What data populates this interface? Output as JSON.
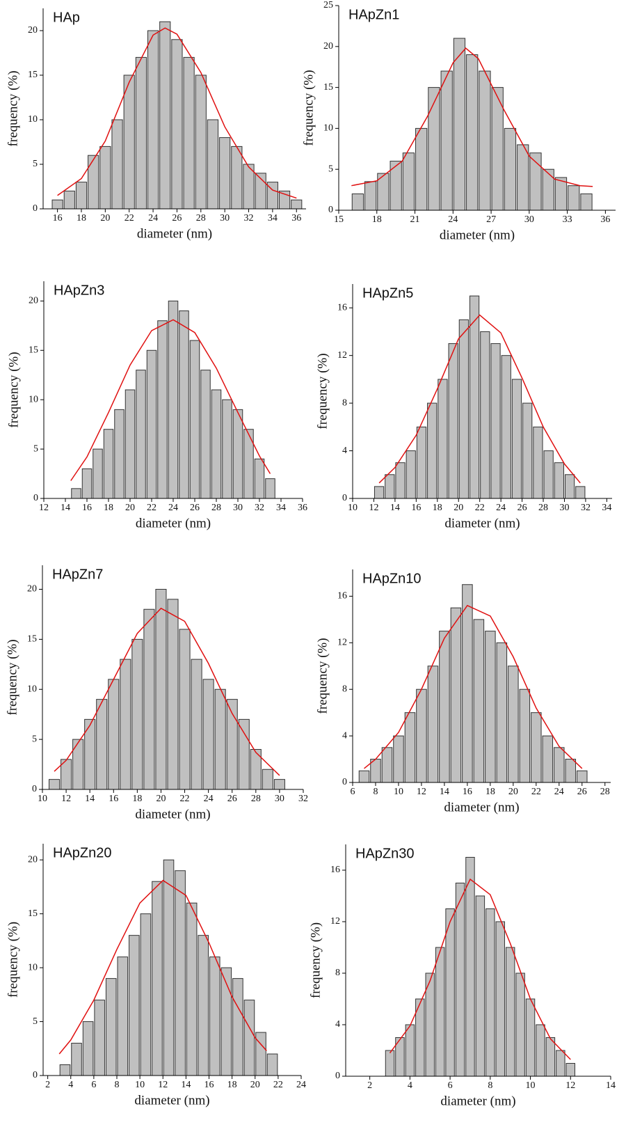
{
  "chart_data": [
    {
      "type": "histogram",
      "title": "HAp",
      "xlabel": "diameter (nm)",
      "ylabel": "frequency (%)",
      "color": "#c0c0c0",
      "bins": [
        15.5,
        16.5,
        17.5,
        18.5,
        19.5,
        20.5,
        21.5,
        22.5,
        23.5,
        24.5,
        25.5,
        26.5,
        27.5,
        28.5,
        29.5,
        30.5,
        31.5,
        32.5,
        33.5,
        34.5,
        35.5,
        36.5
      ],
      "values": [
        1,
        2,
        3,
        6,
        7,
        10,
        15,
        17,
        20,
        21,
        19,
        17,
        15,
        10,
        8,
        7,
        5,
        4,
        3,
        2,
        1
      ],
      "fit": {
        "color": "#e01010",
        "x": [
          16,
          18,
          20,
          22,
          24,
          25,
          26,
          28,
          30,
          32,
          34,
          36
        ],
        "values": [
          1.5,
          3.4,
          7.6,
          14.2,
          19.5,
          20.3,
          19.6,
          15.3,
          9.2,
          4.7,
          2.1,
          1.2
        ]
      },
      "xlim": [
        14.8,
        36.8
      ],
      "xticks": [
        16,
        18,
        20,
        22,
        24,
        26,
        28,
        30,
        32,
        34,
        36
      ],
      "ylim": [
        0,
        22.5
      ],
      "yticks": [
        0,
        5,
        10,
        15,
        20
      ]
    },
    {
      "type": "histogram",
      "title": "HApZn1",
      "xlabel": "diameter (nm)",
      "ylabel": "frequency (%)",
      "color": "#c0c0c0",
      "bins": [
        16,
        17,
        18,
        19,
        20,
        21,
        22,
        23,
        24,
        25,
        26,
        27,
        28,
        29,
        30,
        31,
        32,
        33,
        34,
        35
      ],
      "values": [
        2,
        3.5,
        4.5,
        6,
        7,
        10,
        15,
        17,
        21,
        19,
        17,
        15,
        10,
        8,
        7,
        5,
        4,
        3,
        2
      ],
      "fit": {
        "color": "#e01010",
        "x": [
          16,
          18,
          20,
          22,
          24,
          25,
          26,
          28,
          30,
          32,
          34,
          35
        ],
        "values": [
          3.0,
          3.6,
          6.0,
          11.5,
          18.0,
          19.8,
          18.5,
          12.3,
          6.6,
          3.8,
          3.0,
          2.9
        ]
      },
      "xlim": [
        15,
        36.8
      ],
      "xticks": [
        15,
        18,
        21,
        24,
        27,
        30,
        33,
        36
      ],
      "ylim": [
        0,
        25
      ],
      "yticks": [
        0,
        5,
        10,
        15,
        20,
        25
      ]
    },
    {
      "type": "histogram",
      "title": "HApZn3",
      "xlabel": "diameter (nm)",
      "ylabel": "frequency (%)",
      "color": "#c0c0c0",
      "bins": [
        14.5,
        15.5,
        16.5,
        17.5,
        18.5,
        19.5,
        20.5,
        21.5,
        22.5,
        23.5,
        24.5,
        25.5,
        26.5,
        27.5,
        28.5,
        29.5,
        30.5,
        31.5,
        32.5,
        33.5
      ],
      "values": [
        1,
        3,
        5,
        7,
        9,
        11,
        13,
        15,
        18,
        20,
        19,
        16,
        13,
        11,
        10,
        9,
        7,
        4,
        2
      ],
      "fit": {
        "color": "#e01010",
        "x": [
          14.5,
          16,
          18,
          20,
          22,
          24,
          26,
          28,
          30,
          32,
          33
        ],
        "values": [
          1.8,
          4.2,
          8.7,
          13.5,
          17.0,
          18.1,
          16.8,
          13.2,
          8.7,
          4.3,
          2.5
        ]
      },
      "xlim": [
        12,
        36
      ],
      "xticks": [
        12,
        14,
        16,
        18,
        20,
        22,
        24,
        26,
        28,
        30,
        32,
        34,
        36
      ],
      "ylim": [
        0,
        22
      ],
      "yticks": [
        0,
        5,
        10,
        15,
        20
      ]
    },
    {
      "type": "histogram",
      "title": "HApZn5",
      "xlabel": "diameter (nm)",
      "ylabel": "frequency (%)",
      "color": "#c0c0c0",
      "bins": [
        12,
        13,
        14,
        15,
        16,
        17,
        18,
        19,
        20,
        21,
        22,
        23,
        24,
        25,
        26,
        27,
        28,
        29,
        30,
        31,
        32
      ],
      "values": [
        1,
        2,
        3,
        4,
        6,
        8,
        10,
        13,
        15,
        17,
        14,
        13,
        12,
        10,
        8,
        6,
        4,
        3,
        2,
        1
      ],
      "fit": {
        "color": "#e01010",
        "x": [
          12.5,
          14,
          16,
          18,
          20,
          22,
          24,
          26,
          28,
          30,
          31.5
        ],
        "values": [
          1.3,
          2.6,
          5.3,
          9.2,
          13.4,
          15.4,
          13.9,
          10.1,
          6.0,
          2.9,
          1.3
        ]
      },
      "xlim": [
        10,
        34.5
      ],
      "xticks": [
        10,
        12,
        14,
        16,
        18,
        20,
        22,
        24,
        26,
        28,
        30,
        32,
        34
      ],
      "ylim": [
        0,
        18
      ],
      "yticks": [
        0,
        4,
        8,
        12,
        16
      ]
    },
    {
      "type": "histogram",
      "title": "HApZn7",
      "xlabel": "diameter (nm)",
      "ylabel": "frequency (%)",
      "color": "#c0c0c0",
      "bins": [
        10.5,
        11.5,
        12.5,
        13.5,
        14.5,
        15.5,
        16.5,
        17.5,
        18.5,
        19.5,
        20.5,
        21.5,
        22.5,
        23.5,
        24.5,
        25.5,
        26.5,
        27.5,
        28.5,
        29.5,
        30.5
      ],
      "values": [
        1,
        3,
        5,
        7,
        9,
        11,
        13,
        15,
        18,
        20,
        19,
        16,
        13,
        11,
        10,
        9,
        7,
        4,
        2,
        1
      ],
      "fit": {
        "color": "#e01010",
        "x": [
          11,
          12,
          14,
          16,
          18,
          20,
          22,
          24,
          26,
          28,
          30
        ],
        "values": [
          1.8,
          2.9,
          6.4,
          11.0,
          15.6,
          18.1,
          16.8,
          12.6,
          7.6,
          3.7,
          1.4
        ]
      },
      "xlim": [
        10,
        32
      ],
      "xticks": [
        10,
        12,
        14,
        16,
        18,
        20,
        22,
        24,
        26,
        28,
        30,
        32
      ],
      "ylim": [
        0,
        22.4
      ],
      "yticks": [
        0,
        5,
        10,
        15,
        20
      ]
    },
    {
      "type": "histogram",
      "title": "HApZn10",
      "xlabel": "diameter (nm)",
      "ylabel": "frequency (%)",
      "color": "#c0c0c0",
      "bins": [
        6.5,
        7.5,
        8.5,
        9.5,
        10.5,
        11.5,
        12.5,
        13.5,
        14.5,
        15.5,
        16.5,
        17.5,
        18.5,
        19.5,
        20.5,
        21.5,
        22.5,
        23.5,
        24.5,
        25.5,
        26.5
      ],
      "values": [
        1,
        2,
        3,
        4,
        6,
        8,
        10,
        13,
        15,
        17,
        14,
        13,
        12,
        10,
        8,
        6,
        4,
        3,
        2,
        1
      ],
      "fit": {
        "color": "#e01010",
        "x": [
          7,
          8,
          10,
          12,
          14,
          16,
          18,
          20,
          22,
          24,
          26
        ],
        "values": [
          1.2,
          2.0,
          4.3,
          8.0,
          12.4,
          15.2,
          14.3,
          10.8,
          6.4,
          3.1,
          1.2
        ]
      },
      "xlim": [
        6,
        28.5
      ],
      "xticks": [
        6,
        8,
        10,
        12,
        14,
        16,
        18,
        20,
        22,
        24,
        26,
        28
      ],
      "ylim": [
        0,
        18.3
      ],
      "yticks": [
        0,
        4,
        8,
        12,
        16
      ]
    },
    {
      "type": "histogram",
      "title": "HApZn20",
      "xlabel": "diameter (nm)",
      "ylabel": "frequency (%)",
      "color": "#c0c0c0",
      "bins": [
        3,
        4,
        5,
        6,
        7,
        8,
        9,
        10,
        11,
        12,
        13,
        14,
        15,
        16,
        17,
        18,
        19,
        20,
        21,
        22
      ],
      "values": [
        1,
        3,
        5,
        7,
        9,
        11,
        13,
        15,
        18,
        20,
        19,
        16,
        13,
        11,
        10,
        9,
        7,
        4,
        2
      ],
      "fit": {
        "color": "#e01010",
        "x": [
          3,
          4,
          6,
          8,
          10,
          12,
          14,
          16,
          18,
          20,
          21
        ],
        "values": [
          2.0,
          3.3,
          7.0,
          11.7,
          16.0,
          18.1,
          16.7,
          12.3,
          7.3,
          3.5,
          2.3
        ]
      },
      "xlim": [
        1.6,
        24
      ],
      "xticks": [
        2,
        4,
        6,
        8,
        10,
        12,
        14,
        16,
        18,
        20,
        22,
        24
      ],
      "ylim": [
        0,
        21.5
      ],
      "yticks": [
        0,
        5,
        10,
        15,
        20
      ]
    },
    {
      "type": "histogram",
      "title": "HApZn30",
      "xlabel": "diameter (nm)",
      "ylabel": "frequency (%)",
      "color": "#c0c0c0",
      "bins": [
        2.75,
        3.25,
        3.75,
        4.25,
        4.75,
        5.25,
        5.75,
        6.25,
        6.75,
        7.25,
        7.75,
        8.25,
        8.75,
        9.25,
        9.75,
        10.25,
        10.75,
        11.25,
        11.75,
        12.25
      ],
      "values": [
        2,
        3,
        4,
        6,
        8,
        10,
        13,
        15,
        17,
        14,
        13,
        12,
        10,
        8,
        6,
        4,
        3,
        2,
        1
      ],
      "fit": {
        "color": "#e01010",
        "x": [
          3,
          4,
          5,
          6,
          7,
          8,
          9,
          10,
          11,
          12
        ],
        "values": [
          1.8,
          3.9,
          7.4,
          12.0,
          15.3,
          14.1,
          10.3,
          6.0,
          2.9,
          1.3
        ]
      },
      "xlim": [
        0.8,
        14
      ],
      "xticks": [
        2,
        4,
        6,
        8,
        10,
        12,
        14
      ],
      "ylim": [
        0,
        18
      ],
      "yticks": [
        0,
        4,
        8,
        12,
        16
      ]
    }
  ]
}
